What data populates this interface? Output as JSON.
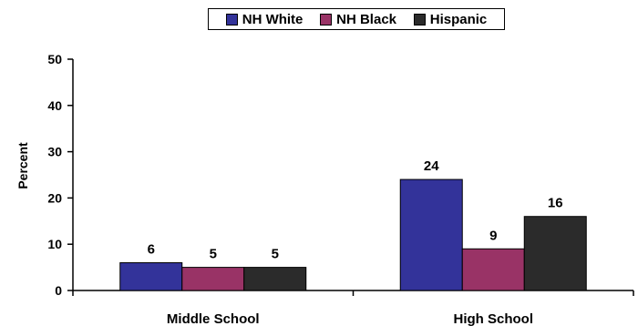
{
  "chart_data": {
    "type": "bar",
    "categories": [
      "Middle School",
      "High School"
    ],
    "series": [
      {
        "name": "NH White",
        "values": [
          6,
          24
        ],
        "color": "#33339a"
      },
      {
        "name": "NH Black",
        "values": [
          5,
          9
        ],
        "color": "#993366"
      },
      {
        "name": "Hispanic",
        "values": [
          5,
          16
        ],
        "color": "#2b2b2b"
      }
    ],
    "data_labels": [
      [
        "6",
        "24"
      ],
      [
        "5",
        "9"
      ],
      [
        "5",
        "16"
      ]
    ],
    "ylabel": "Percent",
    "xlabel": "",
    "ylim": [
      0,
      50
    ],
    "yticks": [
      0,
      10,
      20,
      30,
      40,
      50
    ],
    "grid": false,
    "legend_position": "top-center"
  }
}
